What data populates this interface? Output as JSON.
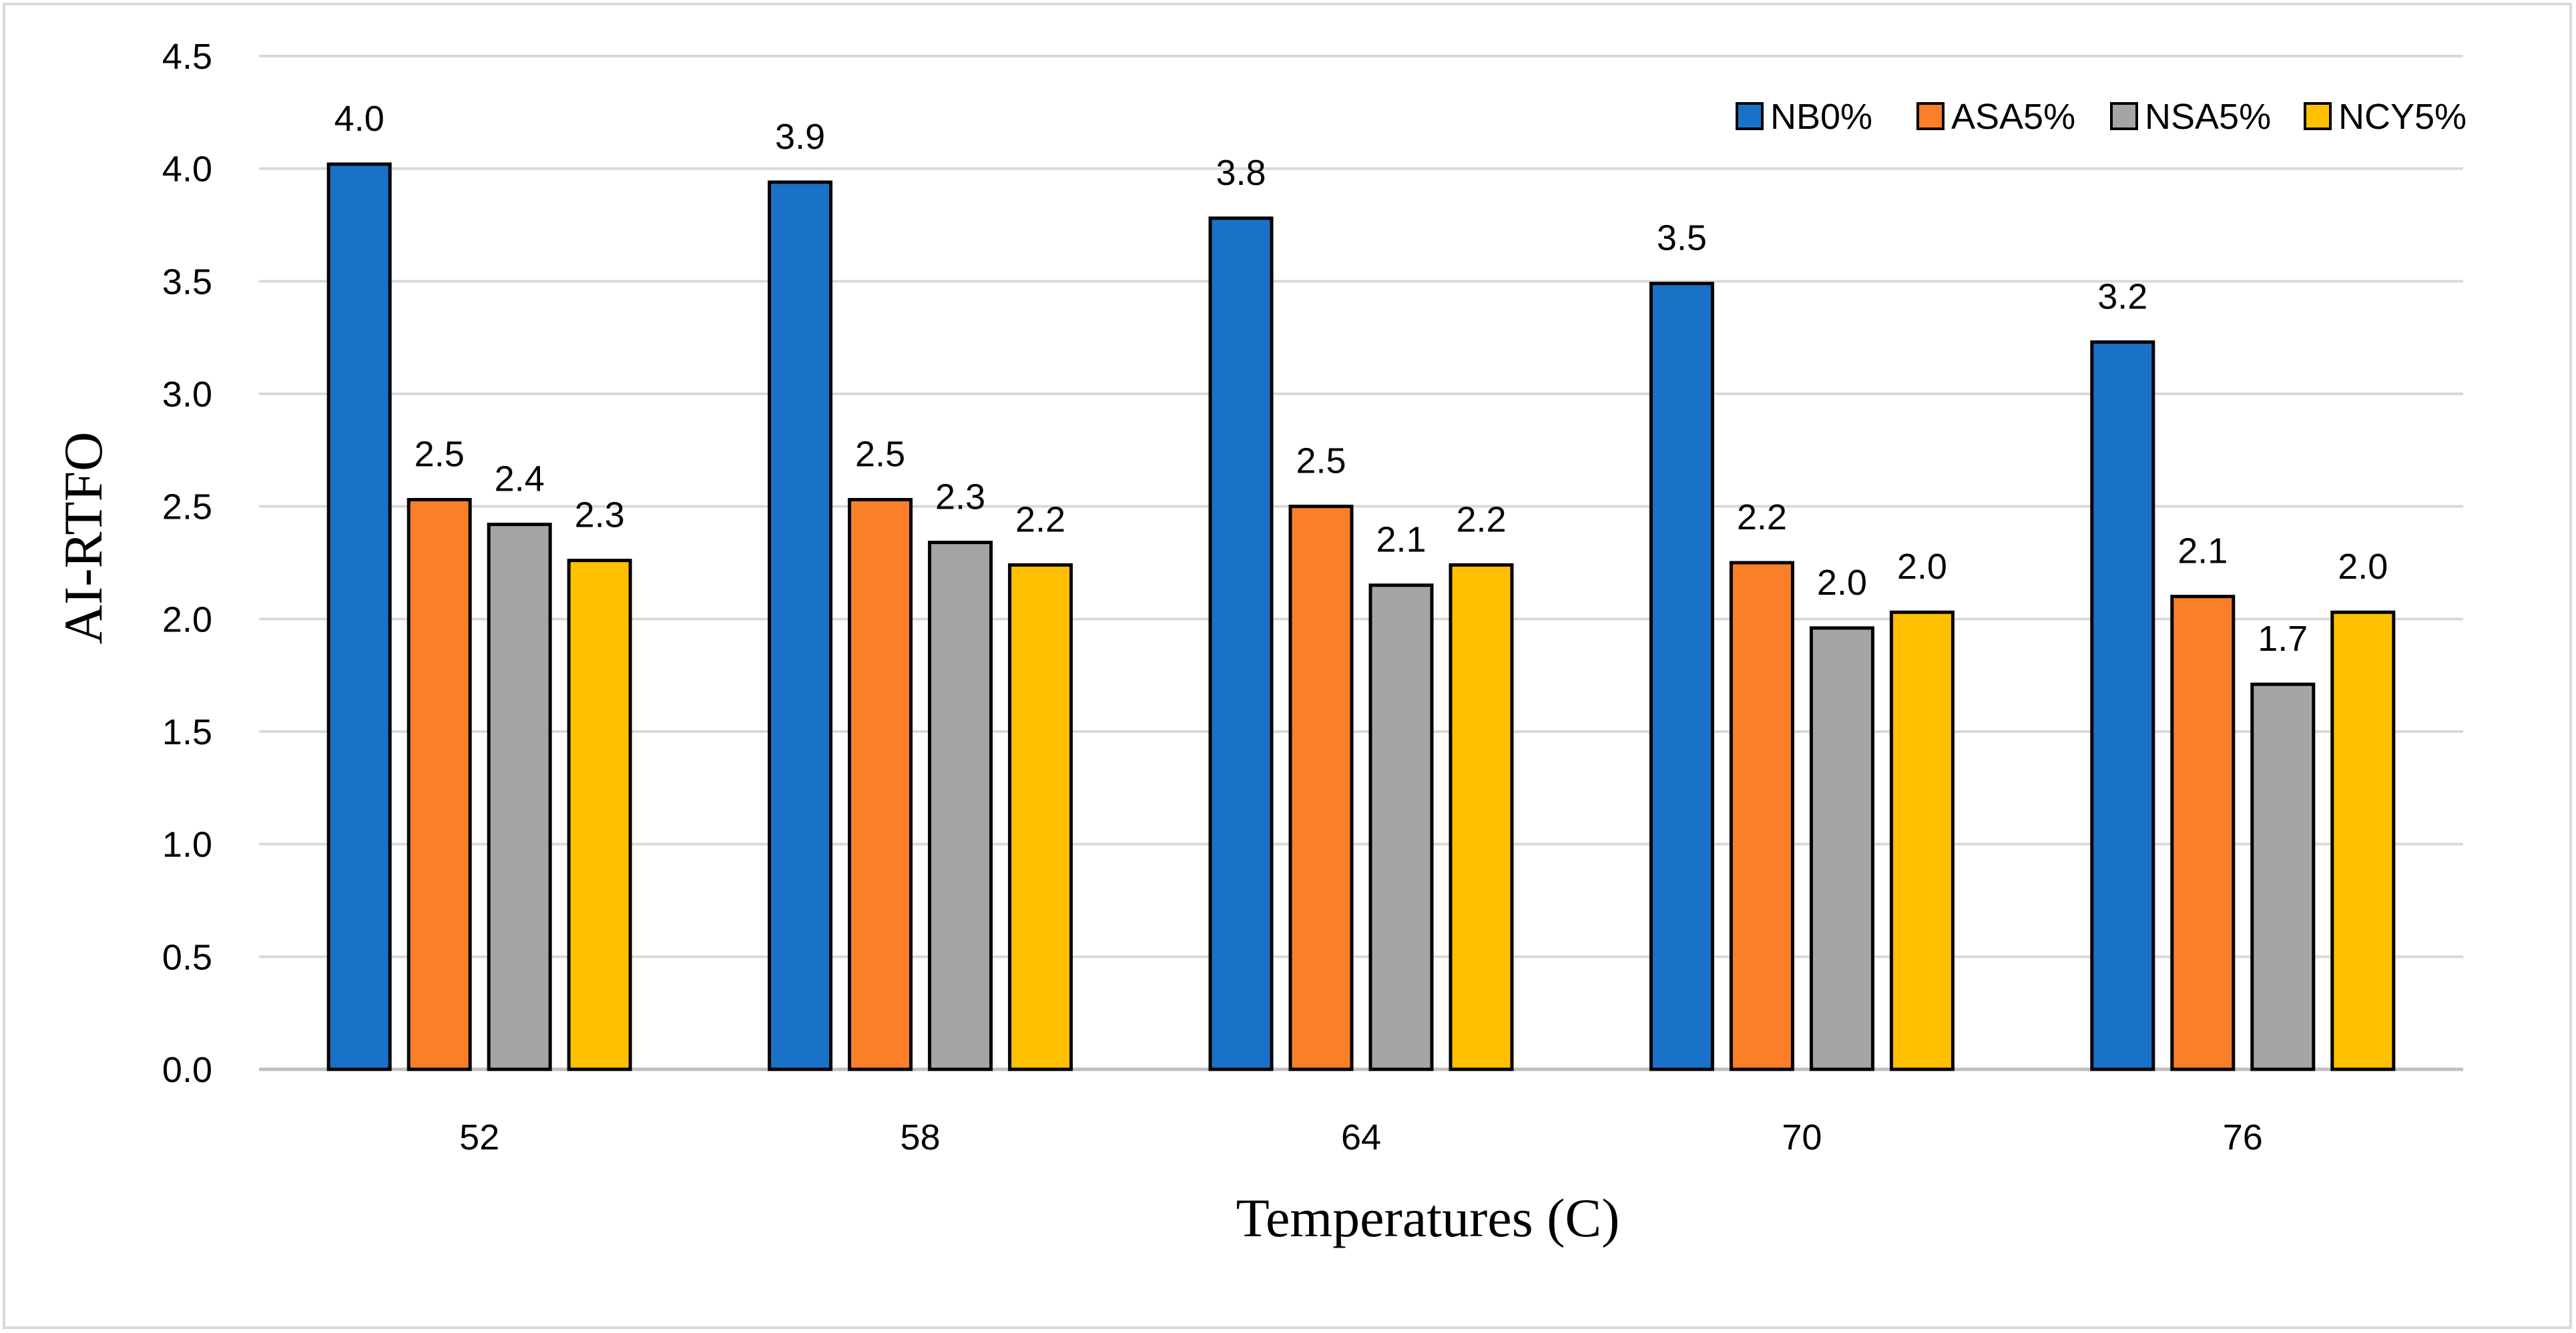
{
  "chart_data": {
    "type": "bar",
    "title": "",
    "xlabel": "Temperatures (C)",
    "ylabel": "AI-RTFO",
    "categories": [
      "52",
      "58",
      "64",
      "70",
      "76"
    ],
    "ylim": [
      0,
      4.5
    ],
    "yticks": [
      "0.0",
      "0.5",
      "1.0",
      "1.5",
      "2.0",
      "2.5",
      "3.0",
      "3.5",
      "4.0",
      "4.5"
    ],
    "grid": true,
    "legend_position": "top-right",
    "series": [
      {
        "name": "NB0%",
        "color": "#1a72c8",
        "values": [
          4.02,
          3.94,
          3.78,
          3.49,
          3.23
        ],
        "labels": [
          "4.0",
          "3.9",
          "3.8",
          "3.5",
          "3.2"
        ]
      },
      {
        "name": "ASA5%",
        "color": "#f97f28",
        "values": [
          2.53,
          2.53,
          2.5,
          2.25,
          2.1
        ],
        "labels": [
          "2.5",
          "2.5",
          "2.5",
          "2.2",
          "2.1"
        ]
      },
      {
        "name": "NSA5%",
        "color": "#a5a5a5",
        "values": [
          2.42,
          2.34,
          2.15,
          1.96,
          1.71
        ],
        "labels": [
          "2.4",
          "2.3",
          "2.1",
          "2.0",
          "1.7"
        ]
      },
      {
        "name": "NCY5%",
        "color": "#ffc000",
        "values": [
          2.26,
          2.24,
          2.24,
          2.03,
          2.03
        ],
        "labels": [
          "2.3",
          "2.2",
          "2.2",
          "2.0",
          "2.0"
        ]
      }
    ]
  }
}
